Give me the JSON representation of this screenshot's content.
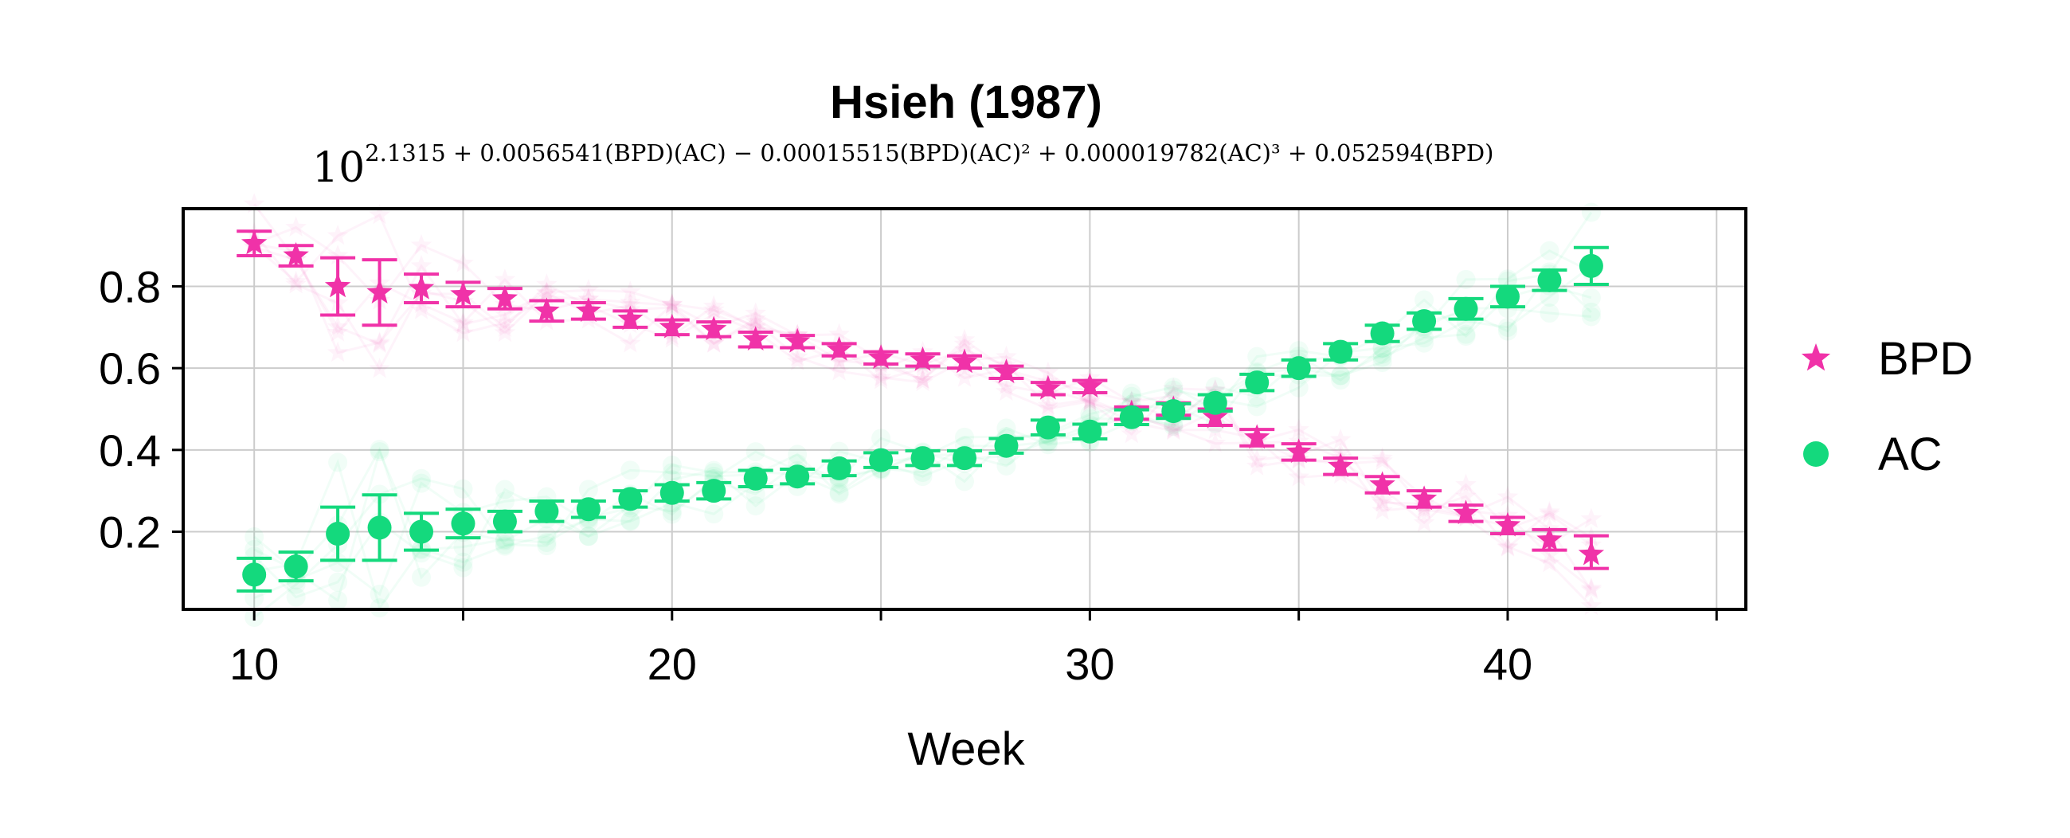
{
  "chart_data": {
    "type": "scatter",
    "title": "Hsieh (1987)",
    "formula": {
      "base": "10",
      "exponent": "2.1315 + 0.0056541(BPD)(AC) − 0.00015515(BPD)(AC)² + 0.000019782(AC)³ + 0.052594(BPD)"
    },
    "xlabel": "Week",
    "ylabel": "",
    "xlim": [
      8.3,
      45.7
    ],
    "ylim": [
      0.01,
      0.99
    ],
    "xticks": [
      10,
      20,
      30,
      40
    ],
    "xticks_minor": [
      15,
      25,
      35,
      45
    ],
    "yticks": [
      0.2,
      0.4,
      0.6,
      0.8
    ],
    "ytick_labels": [
      "0.2",
      "0.4",
      "0.6",
      "0.8"
    ],
    "xtick_labels": [
      "10",
      "20",
      "30",
      "40"
    ],
    "grid": true,
    "legend_position": "right",
    "x": [
      10,
      11,
      12,
      13,
      14,
      15,
      16,
      17,
      18,
      19,
      20,
      21,
      22,
      23,
      24,
      25,
      26,
      27,
      28,
      29,
      30,
      31,
      32,
      33,
      34,
      35,
      36,
      37,
      38,
      39,
      40,
      41,
      42
    ],
    "series": [
      {
        "name": "BPD",
        "marker": "star",
        "color": "#f032a8",
        "values": [
          0.905,
          0.875,
          0.8,
          0.785,
          0.795,
          0.78,
          0.77,
          0.74,
          0.74,
          0.72,
          0.7,
          0.695,
          0.67,
          0.665,
          0.645,
          0.625,
          0.62,
          0.615,
          0.59,
          0.55,
          0.555,
          0.49,
          0.5,
          0.48,
          0.43,
          0.395,
          0.36,
          0.315,
          0.28,
          0.245,
          0.215,
          0.18,
          0.145
        ],
        "err_low": [
          0.03,
          0.025,
          0.07,
          0.08,
          0.035,
          0.03,
          0.025,
          0.025,
          0.02,
          0.02,
          0.018,
          0.018,
          0.018,
          0.015,
          0.015,
          0.015,
          0.015,
          0.015,
          0.015,
          0.015,
          0.015,
          0.015,
          0.015,
          0.02,
          0.02,
          0.02,
          0.02,
          0.02,
          0.02,
          0.02,
          0.02,
          0.025,
          0.035
        ],
        "err_high": [
          0.03,
          0.025,
          0.07,
          0.08,
          0.035,
          0.03,
          0.025,
          0.025,
          0.02,
          0.02,
          0.018,
          0.018,
          0.018,
          0.015,
          0.015,
          0.015,
          0.015,
          0.015,
          0.015,
          0.015,
          0.015,
          0.015,
          0.015,
          0.02,
          0.02,
          0.02,
          0.02,
          0.02,
          0.02,
          0.02,
          0.02,
          0.025,
          0.045
        ]
      },
      {
        "name": "AC",
        "marker": "circle",
        "color": "#14d97d",
        "values": [
          0.095,
          0.115,
          0.195,
          0.21,
          0.2,
          0.22,
          0.225,
          0.25,
          0.255,
          0.28,
          0.295,
          0.3,
          0.33,
          0.335,
          0.355,
          0.375,
          0.38,
          0.38,
          0.41,
          0.455,
          0.445,
          0.48,
          0.495,
          0.515,
          0.565,
          0.6,
          0.64,
          0.685,
          0.715,
          0.745,
          0.775,
          0.815,
          0.85
        ],
        "err_low": [
          0.04,
          0.035,
          0.065,
          0.08,
          0.045,
          0.035,
          0.025,
          0.025,
          0.02,
          0.02,
          0.02,
          0.02,
          0.02,
          0.018,
          0.018,
          0.018,
          0.018,
          0.018,
          0.018,
          0.018,
          0.018,
          0.018,
          0.018,
          0.02,
          0.02,
          0.02,
          0.02,
          0.02,
          0.02,
          0.025,
          0.025,
          0.025,
          0.045
        ],
        "err_high": [
          0.04,
          0.035,
          0.065,
          0.08,
          0.045,
          0.035,
          0.025,
          0.025,
          0.02,
          0.02,
          0.02,
          0.02,
          0.02,
          0.018,
          0.018,
          0.018,
          0.018,
          0.018,
          0.018,
          0.018,
          0.018,
          0.018,
          0.018,
          0.02,
          0.02,
          0.02,
          0.02,
          0.02,
          0.02,
          0.025,
          0.025,
          0.025,
          0.045
        ]
      }
    ]
  }
}
